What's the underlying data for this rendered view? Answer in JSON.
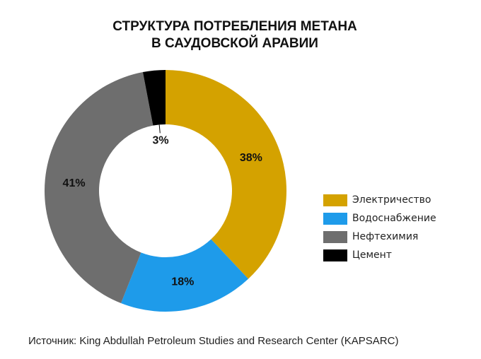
{
  "title_line1": "СТРУКТУРА ПОТРЕБЛЕНИЯ МЕТАНА",
  "title_line2": "В САУДОВСКОЙ АРАВИИ",
  "source": "Источник: King Abdullah Petroleum Studies  and Research Center (KAPSARC)",
  "chart_data": {
    "type": "pie",
    "variant": "donut",
    "title": "СТРУКТУРА ПОТРЕБЛЕНИЯ МЕТАНА В САУДОВСКОЙ АРАВИИ",
    "legend_position": "right",
    "slices": [
      {
        "name": "Электричество",
        "value": 38,
        "label": "38%",
        "color": "#D4A200"
      },
      {
        "name": "Водоснабжение",
        "value": 18,
        "label": "18%",
        "color": "#1E9BEA"
      },
      {
        "name": "Нефтехимия",
        "value": 41,
        "label": "41%",
        "color": "#6E6E6E"
      },
      {
        "name": "Цемент",
        "value": 3,
        "label": "3%",
        "color": "#000000"
      }
    ]
  }
}
